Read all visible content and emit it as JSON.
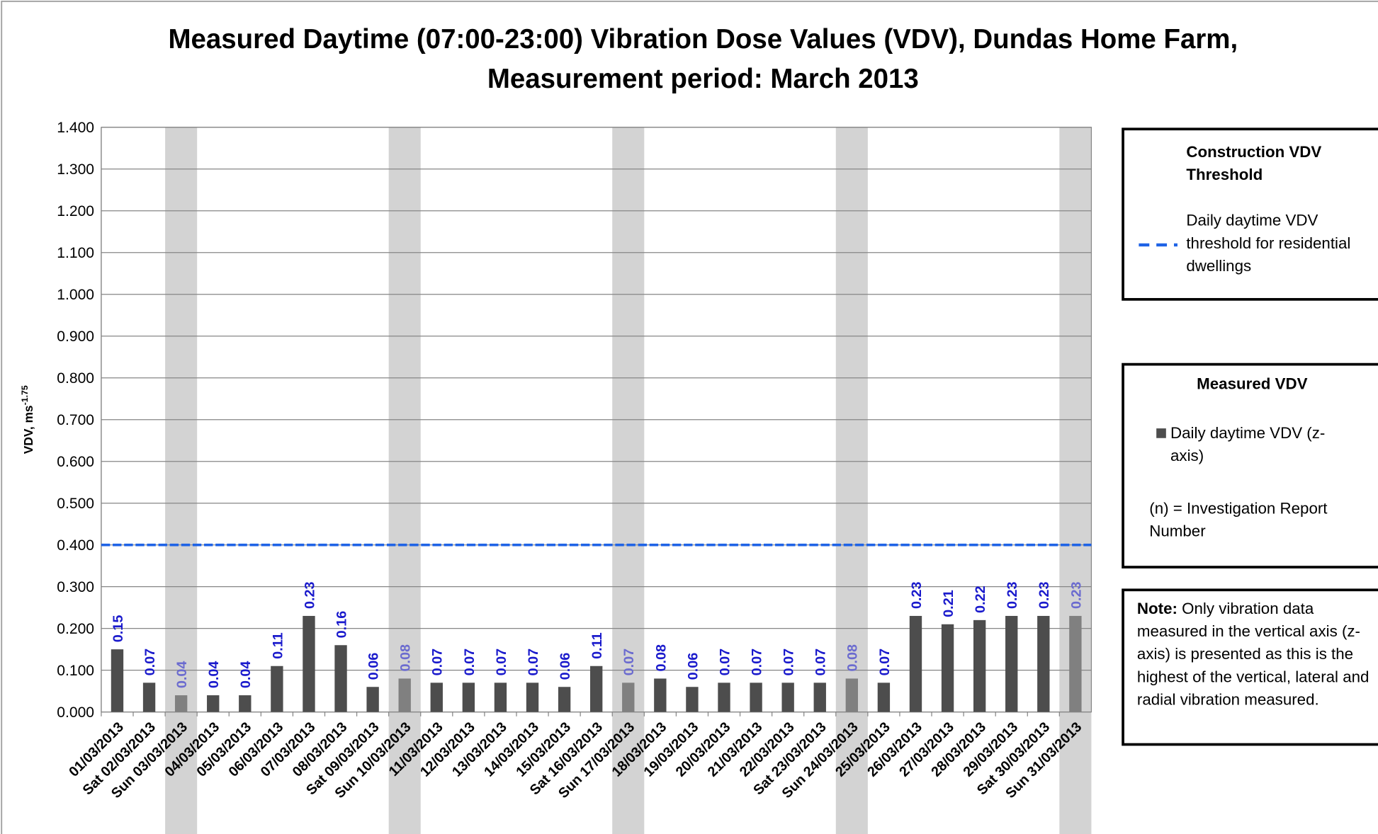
{
  "chart_data": {
    "type": "bar",
    "title": "Measured Daytime (07:00-23:00) Vibration Dose Values (VDV), Dundas Home Farm, Measurement period: March 2013",
    "y_label": "VDV, ms",
    "y_label_sup": "-1.75",
    "categories": [
      "01/03/2013",
      "Sat 02/03/2013",
      "Sun 03/03/2013",
      "04/03/2013",
      "05/03/2013",
      "06/03/2013",
      "07/03/2013",
      "08/03/2013",
      "Sat 09/03/2013",
      "Sun 10/03/2013",
      "11/03/2013",
      "12/03/2013",
      "13/03/2013",
      "14/03/2013",
      "15/03/2013",
      "Sat 16/03/2013",
      "Sun 17/03/2013",
      "18/03/2013",
      "19/03/2013",
      "20/03/2013",
      "21/03/2013",
      "22/03/2013",
      "Sat 23/03/2013",
      "Sun 24/03/2013",
      "25/03/2013",
      "26/03/2013",
      "27/03/2013",
      "28/03/2013",
      "29/03/2013",
      "Sat 30/03/2013",
      "Sun 31/03/2013"
    ],
    "series": [
      {
        "name": "Daily daytime VDV (z-axis)",
        "color": "#4d4d4d",
        "shaded_color": "#808080",
        "label_color": "#1a1acc",
        "shaded_label_color": "#6b6bcf",
        "values": [
          0.15,
          0.07,
          0.04,
          0.04,
          0.04,
          0.11,
          0.23,
          0.16,
          0.06,
          0.08,
          0.07,
          0.07,
          0.07,
          0.07,
          0.06,
          0.11,
          0.07,
          0.08,
          0.06,
          0.07,
          0.07,
          0.07,
          0.07,
          0.08,
          0.07,
          0.23,
          0.21,
          0.22,
          0.23,
          0.23,
          0.23
        ]
      }
    ],
    "shaded": [
      2,
      9,
      16,
      23,
      30
    ],
    "shade_color": "#d3d3d3",
    "threshold": {
      "name": "Daily daytime VDV threshold for residential dwellings",
      "value": 0.4,
      "color": "#1f63e6"
    },
    "legend_threshold_title": "Construction VDV Threshold",
    "legend_measured_title": "Measured VDV",
    "legend_note_n": "(n) = Investigation Report Number",
    "note_label": "Note:",
    "note_text": "Only vibration data measured in the vertical axis (z-axis) is presented as this is the highest of the vertical, lateral and radial vibration measured.",
    "ylim": [
      0,
      1.4
    ],
    "yticks": [
      {
        "value": 0,
        "label": "0.000"
      },
      {
        "value": 0.1,
        "label": "0.100"
      },
      {
        "value": 0.2,
        "label": "0.200"
      },
      {
        "value": 0.3,
        "label": "0.300"
      },
      {
        "value": 0.4,
        "label": "0.400"
      },
      {
        "value": 0.5,
        "label": "0.500"
      },
      {
        "value": 0.6,
        "label": "0.600"
      },
      {
        "value": 0.7,
        "label": "0.700"
      },
      {
        "value": 0.8,
        "label": "0.800"
      },
      {
        "value": 0.9,
        "label": "0.900"
      },
      {
        "value": 1.0,
        "label": "1.000"
      },
      {
        "value": 1.1,
        "label": "1.100"
      },
      {
        "value": 1.2,
        "label": "1.200"
      },
      {
        "value": 1.3,
        "label": "1.300"
      },
      {
        "value": 1.4,
        "label": "1.400"
      }
    ],
    "grid": true
  }
}
